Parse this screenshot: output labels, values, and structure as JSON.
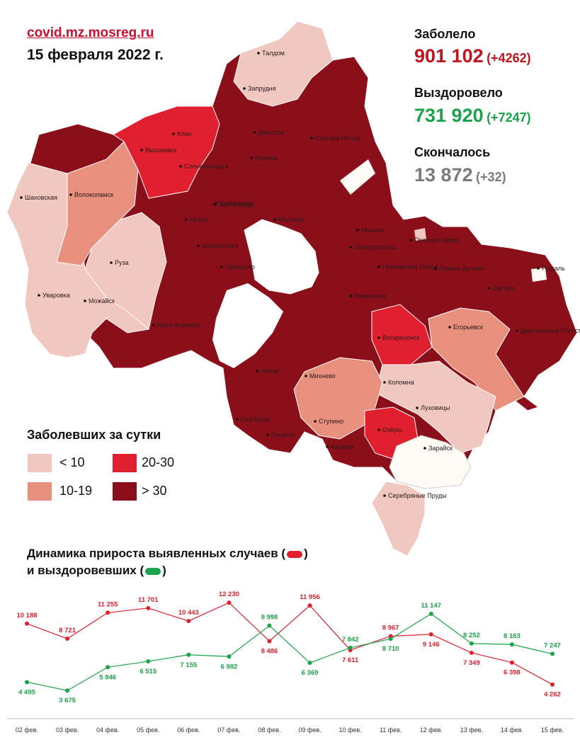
{
  "header": {
    "site": "covid.mz.mosreg.ru",
    "date": "15 февраля 2022 г."
  },
  "stats": {
    "sick": {
      "label": "Заболело",
      "value": "901 102",
      "delta": "(+4262)"
    },
    "recovered": {
      "label": "Выздоровело",
      "value": "731 920",
      "delta": "(+7247)"
    },
    "died": {
      "label": "Скончалось",
      "value": "13 872",
      "delta": "(+32)"
    }
  },
  "map": {
    "labels": [
      "Талдом",
      "Запрудня",
      "Дмитров",
      "Сергиев Посад",
      "Клин",
      "Высоковск",
      "Солнечногорск",
      "Яхрома",
      "Шаховская",
      "Волоколамск",
      "Зеленоград",
      "Мытищи",
      "Истра",
      "Красногорск",
      "Ногинск",
      "Электросталь",
      "Орехово-Зуево",
      "Павловский Посад",
      "Ликино-Дулёво",
      "Руза",
      "Одинцово",
      "Раменское",
      "Шатура",
      "Уваровка",
      "Можайск",
      "Наро-Фоминск",
      "Воскресенск",
      "Егорьевск",
      "Рошаль",
      "Дмитровский Погост",
      "Чехов",
      "Михнево",
      "Коломна",
      "Луховицы",
      "Серпухов",
      "Ступино",
      "Озёры",
      "Зарайск",
      "Кашира",
      "Пущино",
      "Серебряные Пруды",
      "Звенигород"
    ],
    "colors": {
      "lt10": "#f0c8c0",
      "10_19": "#e8907e",
      "20_30": "#e0202e",
      "gt30": "#8b0f1a",
      "none": "#fdfbf3"
    }
  },
  "legend": {
    "title": "Заболевших за сутки",
    "items": [
      {
        "label": "< 10",
        "color": "#f0c8c0"
      },
      {
        "label": "20-30",
        "color": "#e0202e"
      },
      {
        "label": "10-19",
        "color": "#e8907e"
      },
      {
        "label": "> 30",
        "color": "#8b0f1a"
      }
    ]
  },
  "chart_title": {
    "line1": "Динамика прироста выявленных случаев (",
    "line1_end": ")",
    "line2": "и выздоровевших (",
    "line2_end": ")"
  },
  "chart_data": {
    "type": "line",
    "x": [
      "02 фев.",
      "03 фев.",
      "04 фев.",
      "05 фев.",
      "06 фев.",
      "07 фев.",
      "08 фев.",
      "09 фев.",
      "10 фев.",
      "11 фев.",
      "12 фев.",
      "13 фев.",
      "14 фев.",
      "15 фев."
    ],
    "series": [
      {
        "color": "#e0202e",
        "values": [
          10188,
          8721,
          11255,
          11701,
          10443,
          12230,
          8486,
          11956,
          7611,
          8967,
          9146,
          7349,
          6398,
          4262
        ],
        "labels": [
          "10 188",
          "8 721",
          "11 255",
          "11 701",
          "10 443",
          "12 230",
          "8 486",
          "11 956",
          "7 611",
          "8 967",
          "9 146",
          "7 349",
          "6 398",
          "4 262"
        ]
      },
      {
        "color": "#1aa34a",
        "values": [
          4495,
          3675,
          5946,
          6515,
          7155,
          6982,
          9998,
          6369,
          7842,
          8710,
          11147,
          8252,
          8163,
          7247
        ],
        "labels": [
          "4 495",
          "3 675",
          "5 946",
          "6 515",
          "7 155",
          "6 982",
          "9 998",
          "6 369",
          "7 842",
          "8 710",
          "11 147",
          "8 252",
          "8 163",
          "7 247"
        ]
      }
    ],
    "ylim": [
      3000,
      13000
    ]
  }
}
